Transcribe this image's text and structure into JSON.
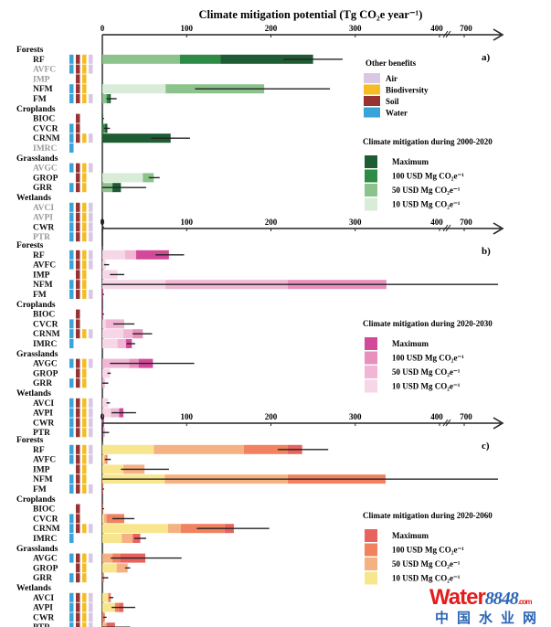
{
  "title": "Climate mitigation potential (Tg CO₂e year⁻¹)",
  "axis": {
    "ticks": [
      "0",
      "100",
      "200",
      "300",
      "400",
      "700"
    ],
    "break_between": [
      "400",
      "700"
    ]
  },
  "benefit_legend": {
    "title": "Other benefits",
    "items": [
      {
        "name": "Air",
        "color": "#d8c8e6"
      },
      {
        "name": "Biodiversity",
        "color": "#f5bd23"
      },
      {
        "name": "Soil",
        "color": "#963333"
      },
      {
        "name": "Water",
        "color": "#3aa3d8"
      }
    ]
  },
  "cost_levels": [
    "Maximum",
    "100 USD Mg CO₂e⁻¹",
    "50 USD Mg CO₂e⁻¹",
    "10 USD Mg CO₂e⁻¹"
  ],
  "groups": [
    {
      "name": "Forests",
      "pathways": [
        "RF",
        "AVFC",
        "IMP",
        "NFM",
        "FM"
      ]
    },
    {
      "name": "Croplands",
      "pathways": [
        "BIOC",
        "CVCR",
        "CRNM",
        "IMRC"
      ]
    },
    {
      "name": "Grasslands",
      "pathways": [
        "AVGC",
        "GROP",
        "GRR"
      ]
    },
    {
      "name": "Wetlands",
      "pathways": [
        "AVCI",
        "AVPI",
        "CWR",
        "PTR"
      ]
    }
  ],
  "benefits": {
    "RF": [
      "water",
      "soil",
      "biodiversity",
      "air"
    ],
    "AVFC": [
      "water",
      "soil",
      "biodiversity",
      "air"
    ],
    "IMP": [
      "soil",
      "biodiversity"
    ],
    "NFM": [
      "water",
      "soil",
      "biodiversity"
    ],
    "FM": [
      "water",
      "soil",
      "biodiversity",
      "air"
    ],
    "BIOC": [
      "soil"
    ],
    "CVCR": [
      "water",
      "soil"
    ],
    "CRNM": [
      "water",
      "soil",
      "biodiversity",
      "air"
    ],
    "IMRC": [
      "water"
    ],
    "AVGC": [
      "water",
      "soil",
      "biodiversity",
      "air"
    ],
    "GROP": [
      "soil",
      "biodiversity"
    ],
    "GRR": [
      "water",
      "soil",
      "biodiversity"
    ],
    "AVCI": [
      "water",
      "soil",
      "biodiversity",
      "air"
    ],
    "AVPI": [
      "water",
      "soil",
      "biodiversity",
      "air"
    ],
    "CWR": [
      "water",
      "soil",
      "biodiversity",
      "air"
    ],
    "PTR": [
      "water",
      "soil",
      "biodiversity",
      "air"
    ]
  },
  "chart_data": [
    {
      "type": "bar",
      "panel": "a)",
      "legend_title": "Climate mitigation during 2000-2020",
      "colors": {
        "max": "#1e5c33",
        "c100": "#2e8b45",
        "c50": "#8cc38c",
        "c10": "#d8ecd8"
      },
      "xlim": [
        0,
        700
      ],
      "greyed": [
        "AVFC",
        "IMP",
        "IMRC",
        "AVGC",
        "AVCI",
        "AVPI",
        "PTR"
      ],
      "bars": {
        "RF": {
          "c10": 0,
          "c50": 92,
          "c100": 140,
          "max": 250,
          "err": [
            215,
            285
          ]
        },
        "AVFC": null,
        "IMP": null,
        "NFM": {
          "c10": 75,
          "c50": 192,
          "c100": 192,
          "max": 192,
          "err": [
            110,
            270
          ]
        },
        "FM": {
          "c10": 0,
          "c50": 5,
          "c100": 8,
          "max": 10,
          "err": [
            5,
            17
          ]
        },
        "BIOC": {
          "c10": 0,
          "c50": 0,
          "c100": 0,
          "max": 1,
          "err": null
        },
        "CVCR": {
          "c10": 0,
          "c50": 0,
          "c100": 3,
          "max": 6,
          "err": [
            2,
            9
          ]
        },
        "CRNM": {
          "c10": 0,
          "c50": 0,
          "c100": 0,
          "max": 81,
          "err": [
            58,
            104
          ]
        },
        "IMRC": null,
        "AVGC": null,
        "GROP": {
          "c10": 48,
          "c50": 61,
          "c100": 61,
          "max": 61,
          "err": [
            55,
            68
          ]
        },
        "GRR": {
          "c10": 0,
          "c50": 12,
          "c100": 12,
          "max": 22,
          "err": [
            0,
            52
          ]
        },
        "AVCI": null,
        "AVPI": null,
        "CWR": {
          "c10": 0,
          "c50": 0,
          "c100": 0,
          "max": 1,
          "err": null
        },
        "PTR": null
      }
    },
    {
      "type": "bar",
      "panel": "b)",
      "legend_title": "Climate mitigation during 2020-2030",
      "colors": {
        "max": "#d2499a",
        "c100": "#e88fbd",
        "c50": "#f0b6d4",
        "c10": "#f6d6e7"
      },
      "xlim": [
        0,
        700
      ],
      "greyed": [],
      "bars": {
        "RF": {
          "c10": 27,
          "c50": 40,
          "c100": 40,
          "max": 79,
          "err": [
            63,
            97
          ]
        },
        "AVFC": {
          "c10": 4,
          "c50": 4,
          "c100": 4,
          "max": 4,
          "err": [
            2,
            8
          ]
        },
        "IMP": {
          "c10": 18,
          "c50": 18,
          "c100": 18,
          "max": 18,
          "err": [
            9,
            26
          ]
        },
        "NFM": {
          "c10": 75,
          "c50": 220,
          "c100": 337,
          "max": 337,
          "err": [
            0,
            735
          ]
        },
        "FM": {
          "c10": 0,
          "c50": 0,
          "c100": 0,
          "max": 1,
          "err": null
        },
        "BIOC": {
          "c10": 0,
          "c50": 0,
          "c100": 0,
          "max": 1,
          "err": null
        },
        "CVCR": {
          "c10": 4,
          "c50": 26,
          "c100": 26,
          "max": 26,
          "err": [
            13,
            38
          ]
        },
        "CRNM": {
          "c10": 25,
          "c50": 36,
          "c100": 48,
          "max": 48,
          "err": [
            36,
            59
          ]
        },
        "IMRC": {
          "c10": 18,
          "c50": 28,
          "c100": 28,
          "max": 35,
          "err": [
            29,
            39
          ]
        },
        "AVGC": {
          "c10": 0,
          "c50": 32,
          "c100": 43,
          "max": 60,
          "err": [
            9,
            109
          ]
        },
        "GROP": {
          "c10": 9,
          "c50": 9,
          "c100": 9,
          "max": 9,
          "err": [
            6,
            10
          ]
        },
        "GRR": {
          "c10": 0,
          "c50": 3,
          "c100": 3,
          "max": 3,
          "err": [
            0,
            7
          ]
        },
        "AVCI": {
          "c10": 7,
          "c50": 7,
          "c100": 7,
          "max": 7,
          "err": [
            5,
            9
          ]
        },
        "AVPI": {
          "c10": 10,
          "c50": 20,
          "c100": 20,
          "max": 25,
          "err": [
            11,
            40
          ]
        },
        "CWR": {
          "c10": 0,
          "c50": 0,
          "c100": 0,
          "max": 2,
          "err": null
        },
        "PTR": {
          "c10": 0,
          "c50": 3,
          "c100": 3,
          "max": 3,
          "err": [
            0,
            8
          ]
        }
      }
    },
    {
      "type": "bar",
      "panel": "c)",
      "legend_title": "Climate mitigation during 2020-2060",
      "colors": {
        "max": "#e8625e",
        "c100": "#f0825f",
        "c50": "#f6b183",
        "c10": "#f8e68e"
      },
      "xlim": [
        0,
        700
      ],
      "greyed": [],
      "bars": {
        "RF": {
          "c10": 61,
          "c50": 168,
          "c100": 220,
          "max": 237,
          "err": [
            208,
            268
          ]
        },
        "AVFC": {
          "c10": 2,
          "c50": 4,
          "c100": 6,
          "max": 6,
          "err": [
            3,
            10
          ]
        },
        "IMP": {
          "c10": 25,
          "c50": 50,
          "c100": 50,
          "max": 50,
          "err": [
            22,
            79
          ]
        },
        "NFM": {
          "c10": 74,
          "c50": 220,
          "c100": 336,
          "max": 336,
          "err": [
            0,
            735
          ]
        },
        "FM": {
          "c10": 0,
          "c50": 0,
          "c100": 0,
          "max": 1,
          "err": null
        },
        "BIOC": {
          "c10": 0,
          "c50": 0,
          "c100": 0,
          "max": 1,
          "err": null
        },
        "CVCR": {
          "c10": 2,
          "c50": 5,
          "c100": 26,
          "max": 26,
          "err": [
            12,
            38
          ]
        },
        "CRNM": {
          "c10": 78,
          "c50": 93,
          "c100": 145,
          "max": 156,
          "err": [
            112,
            198
          ]
        },
        "IMRC": {
          "c10": 23,
          "c50": 36,
          "c100": 36,
          "max": 45,
          "err": [
            38,
            52
          ]
        },
        "AVGC": {
          "c10": 0,
          "c50": 12,
          "c100": 21,
          "max": 51,
          "err": [
            10,
            94
          ]
        },
        "GROP": {
          "c10": 17,
          "c50": 30,
          "c100": 30,
          "max": 30,
          "err": [
            27,
            33
          ]
        },
        "GRR": {
          "c10": 0,
          "c50": 0,
          "c100": 2,
          "max": 2,
          "err": [
            0,
            7
          ]
        },
        "AVCI": {
          "c10": 7,
          "c50": 7,
          "c100": 9,
          "max": 10,
          "err": [
            8,
            13
          ]
        },
        "AVPI": {
          "c10": 15,
          "c50": 15,
          "c100": 20,
          "max": 25,
          "err": [
            11,
            39
          ]
        },
        "CWR": {
          "c10": 0,
          "c50": 0,
          "c100": 3,
          "max": 3,
          "err": [
            1,
            5
          ]
        },
        "PTR": {
          "c10": 0,
          "c50": 5,
          "c100": 5,
          "max": 15,
          "err": [
            0,
            33
          ]
        }
      }
    }
  ],
  "watermark": {
    "line1a": "Water",
    "line1b": "8848",
    "line1c": ".com",
    "line2": "中国水业网"
  }
}
